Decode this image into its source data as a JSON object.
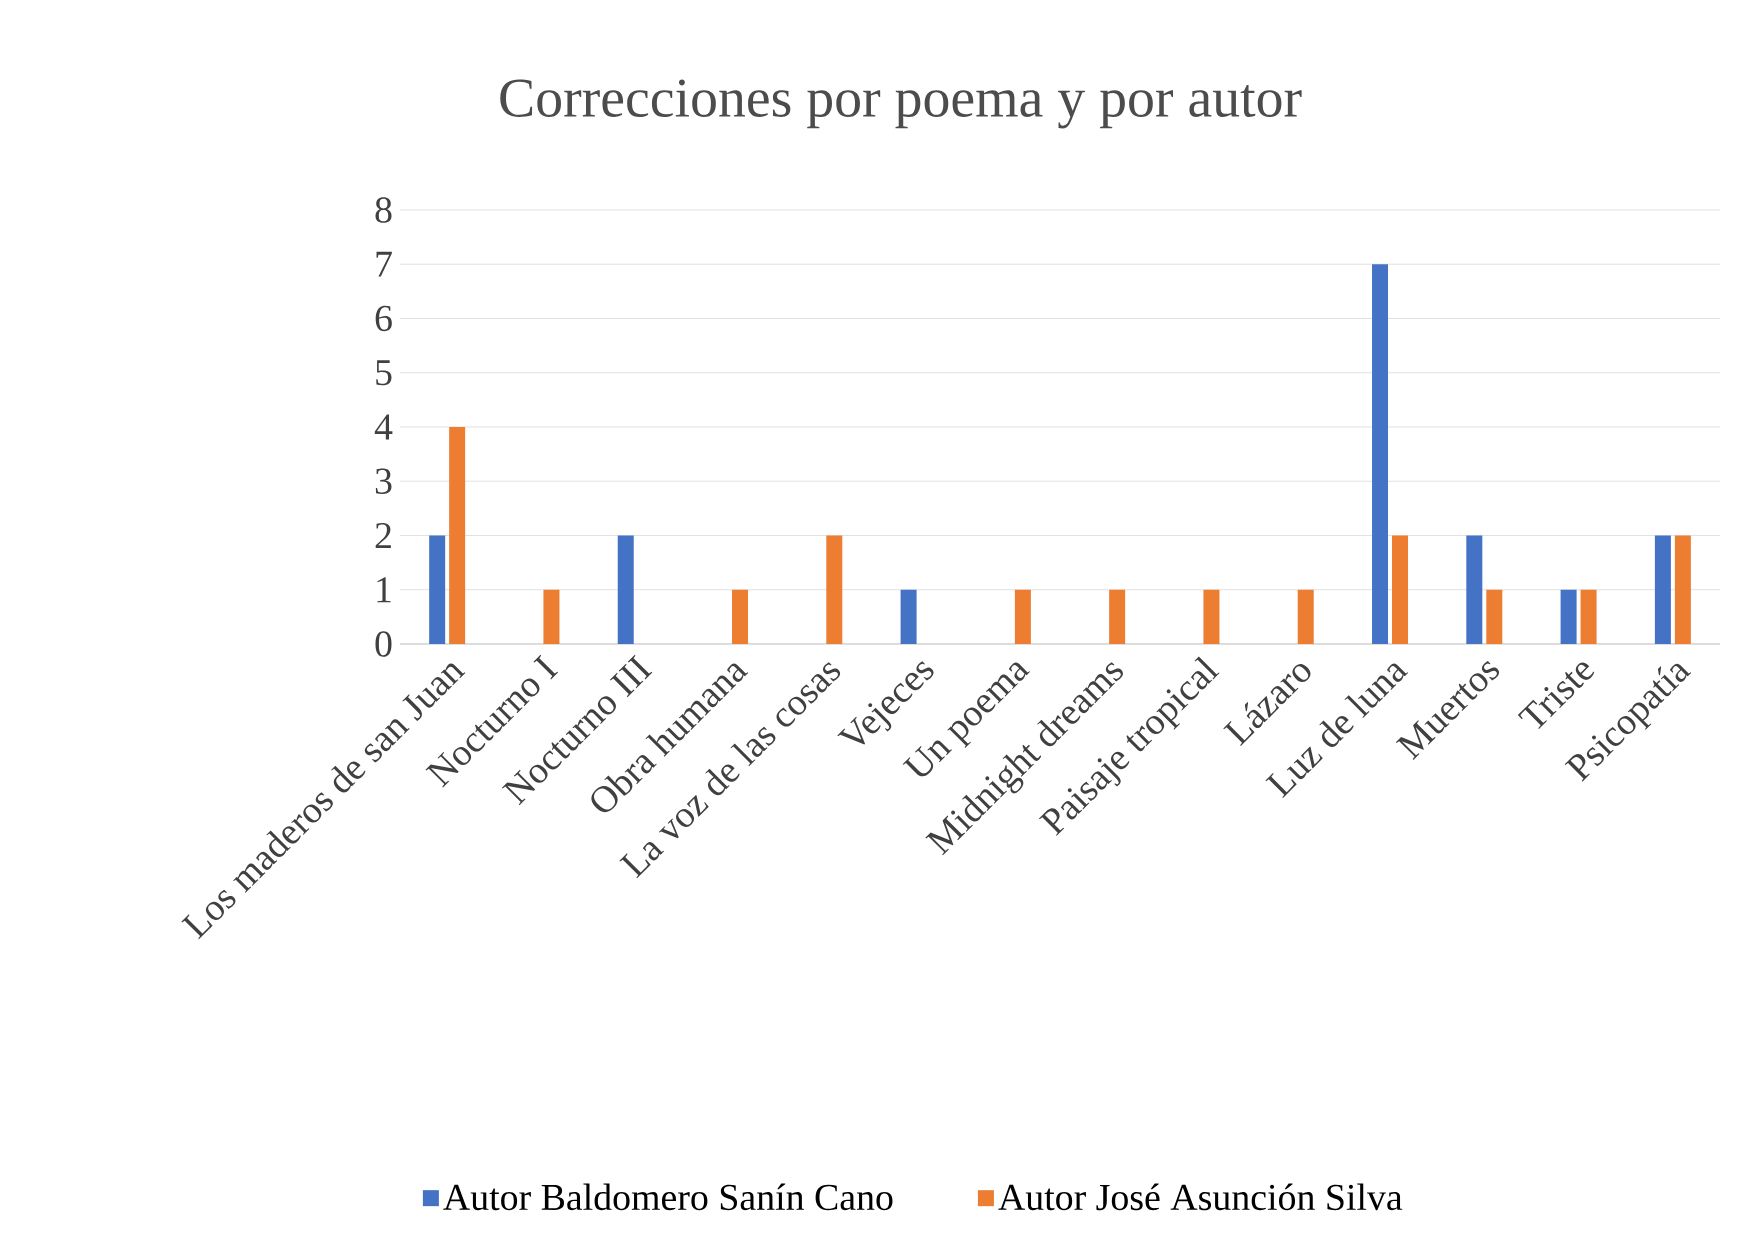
{
  "chart_data": {
    "type": "bar",
    "title": "Correcciones por poema y por autor",
    "categories": [
      "Los maderos de san Juan",
      "Nocturno I",
      "Nocturno III",
      "Obra humana",
      "La voz de las cosas",
      "Vejeces",
      "Un poema",
      "Midnight dreams",
      "Paisaje tropical",
      "Lázaro",
      "Luz de luna",
      "Muertos",
      "Triste",
      "Psicopatía"
    ],
    "series": [
      {
        "name": "Autor Baldomero Sanín Cano",
        "color": "#4472c4",
        "values": [
          2,
          0,
          2,
          0,
          0,
          1,
          0,
          0,
          0,
          0,
          7,
          2,
          1,
          2
        ]
      },
      {
        "name": "Autor José Asunción Silva",
        "color": "#ed7d31",
        "values": [
          4,
          1,
          0,
          1,
          2,
          0,
          1,
          1,
          1,
          1,
          2,
          1,
          1,
          2
        ]
      }
    ],
    "ylim": [
      0,
      8
    ],
    "yticks": [
      0,
      1,
      2,
      3,
      4,
      5,
      6,
      7,
      8
    ],
    "grid": "y",
    "legend": "bottom"
  }
}
